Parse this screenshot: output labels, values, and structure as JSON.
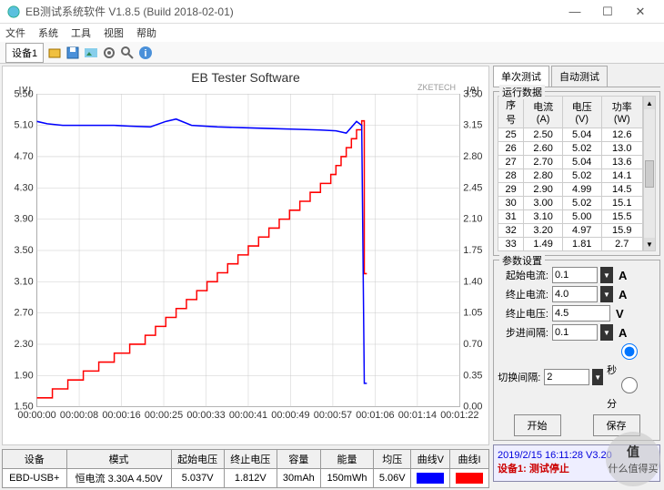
{
  "window": {
    "title": "EB测试系统软件 V1.8.5 (Build 2018-02-01)"
  },
  "menu": [
    "文件",
    "系统",
    "工具",
    "视图",
    "帮助"
  ],
  "toolbar_tab": "设备1",
  "chart": {
    "title": "EB Tester Software",
    "watermark": "ZKETECH",
    "left_unit": "[V]",
    "right_unit": "[A]",
    "left_ticks": [
      5.5,
      5.1,
      4.7,
      4.3,
      3.9,
      3.5,
      3.1,
      2.7,
      2.3,
      1.9,
      1.5
    ],
    "right_ticks": [
      3.5,
      3.15,
      2.8,
      2.45,
      2.1,
      1.75,
      1.4,
      1.05,
      0.7,
      0.35,
      0.0
    ],
    "x_ticks": [
      "00:00:00",
      "00:00:08",
      "00:00:16",
      "00:00:25",
      "00:00:33",
      "00:00:41",
      "00:00:49",
      "00:00:57",
      "00:01:06",
      "00:01:14",
      "00:01:22"
    ],
    "voltage_color": "#0000ff",
    "current_color": "#ff0000",
    "grid_color": "#cccccc",
    "bg_color": "#ffffff",
    "voltage_series": [
      [
        0,
        5.15
      ],
      [
        2,
        5.12
      ],
      [
        5,
        5.1
      ],
      [
        10,
        5.1
      ],
      [
        15,
        5.1
      ],
      [
        18,
        5.09
      ],
      [
        22,
        5.08
      ],
      [
        25,
        5.15
      ],
      [
        27,
        5.18
      ],
      [
        30,
        5.1
      ],
      [
        35,
        5.08
      ],
      [
        40,
        5.07
      ],
      [
        45,
        5.06
      ],
      [
        50,
        5.05
      ],
      [
        55,
        5.04
      ],
      [
        58,
        5.03
      ],
      [
        60,
        5.0
      ],
      [
        62,
        5.15
      ],
      [
        63,
        5.1
      ],
      [
        63.5,
        1.8
      ],
      [
        64,
        1.8
      ]
    ],
    "current_series": [
      [
        0,
        0.1
      ],
      [
        3,
        0.1
      ],
      [
        3,
        0.2
      ],
      [
        6,
        0.2
      ],
      [
        6,
        0.3
      ],
      [
        9,
        0.3
      ],
      [
        9,
        0.4
      ],
      [
        12,
        0.4
      ],
      [
        12,
        0.5
      ],
      [
        15,
        0.5
      ],
      [
        15,
        0.6
      ],
      [
        18,
        0.6
      ],
      [
        18,
        0.7
      ],
      [
        21,
        0.7
      ],
      [
        21,
        0.8
      ],
      [
        23,
        0.8
      ],
      [
        23,
        0.9
      ],
      [
        25,
        0.9
      ],
      [
        25,
        1.0
      ],
      [
        27,
        1.0
      ],
      [
        27,
        1.1
      ],
      [
        29,
        1.1
      ],
      [
        29,
        1.2
      ],
      [
        31,
        1.2
      ],
      [
        31,
        1.3
      ],
      [
        33,
        1.3
      ],
      [
        33,
        1.4
      ],
      [
        35,
        1.4
      ],
      [
        35,
        1.5
      ],
      [
        37,
        1.5
      ],
      [
        37,
        1.6
      ],
      [
        39,
        1.6
      ],
      [
        39,
        1.7
      ],
      [
        41,
        1.7
      ],
      [
        41,
        1.8
      ],
      [
        43,
        1.8
      ],
      [
        43,
        1.9
      ],
      [
        45,
        1.9
      ],
      [
        45,
        2.0
      ],
      [
        47,
        2.0
      ],
      [
        47,
        2.1
      ],
      [
        49,
        2.1
      ],
      [
        49,
        2.2
      ],
      [
        51,
        2.2
      ],
      [
        51,
        2.3
      ],
      [
        53,
        2.3
      ],
      [
        53,
        2.4
      ],
      [
        55,
        2.4
      ],
      [
        55,
        2.5
      ],
      [
        57,
        2.5
      ],
      [
        57,
        2.6
      ],
      [
        58,
        2.6
      ],
      [
        58,
        2.7
      ],
      [
        59,
        2.7
      ],
      [
        59,
        2.8
      ],
      [
        60,
        2.8
      ],
      [
        60,
        2.9
      ],
      [
        61,
        2.9
      ],
      [
        61,
        3.0
      ],
      [
        62,
        3.0
      ],
      [
        62,
        3.1
      ],
      [
        63,
        3.1
      ],
      [
        63,
        3.2
      ],
      [
        63.5,
        3.2
      ],
      [
        63.5,
        1.49
      ],
      [
        64,
        1.49
      ]
    ]
  },
  "bottom": {
    "headers": [
      "设备",
      "模式",
      "起始电压",
      "终止电压",
      "容量",
      "能量",
      "均压",
      "曲线V",
      "曲线I"
    ],
    "row": [
      "EBD-USB+",
      "恒电流  3.30A  4.50V",
      "5.037V",
      "1.812V",
      "30mAh",
      "150mWh",
      "5.06V"
    ],
    "swatch_v": "#0000ff",
    "swatch_i": "#ff0000"
  },
  "tabs": {
    "t1": "单次测试",
    "t2": "自动测试"
  },
  "data_group_title": "运行数据",
  "data_headers": [
    "序号",
    "电流(A)",
    "电压(V)",
    "功率(W)"
  ],
  "data_rows": [
    [
      "25",
      "2.50",
      "5.04",
      "12.6"
    ],
    [
      "26",
      "2.60",
      "5.02",
      "13.0"
    ],
    [
      "27",
      "2.70",
      "5.04",
      "13.6"
    ],
    [
      "28",
      "2.80",
      "5.02",
      "14.1"
    ],
    [
      "29",
      "2.90",
      "4.99",
      "14.5"
    ],
    [
      "30",
      "3.00",
      "5.02",
      "15.1"
    ],
    [
      "31",
      "3.10",
      "5.00",
      "15.5"
    ],
    [
      "32",
      "3.20",
      "4.97",
      "15.9"
    ],
    [
      "33",
      "1.49",
      "1.81",
      "2.7"
    ]
  ],
  "params_title": "参数设置",
  "params": {
    "start_current_label": "起始电流:",
    "start_current": "0.1",
    "start_current_unit": "A",
    "end_current_label": "终止电流:",
    "end_current": "4.0",
    "end_current_unit": "A",
    "end_voltage_label": "终止电压:",
    "end_voltage": "4.5",
    "end_voltage_unit": "V",
    "step_label": "步进间隔:",
    "step": "0.1",
    "step_unit": "A",
    "switch_label": "切换间隔:",
    "switch": "2",
    "radio1": "秒",
    "radio2": "分"
  },
  "buttons": {
    "start": "开始",
    "save": "保存"
  },
  "status": {
    "line1": "2019/2/15 16:11:28   V3.20",
    "line2": "设备1: 测试停止"
  },
  "badge": {
    "zh": "值",
    "txt": "什么值得买"
  }
}
